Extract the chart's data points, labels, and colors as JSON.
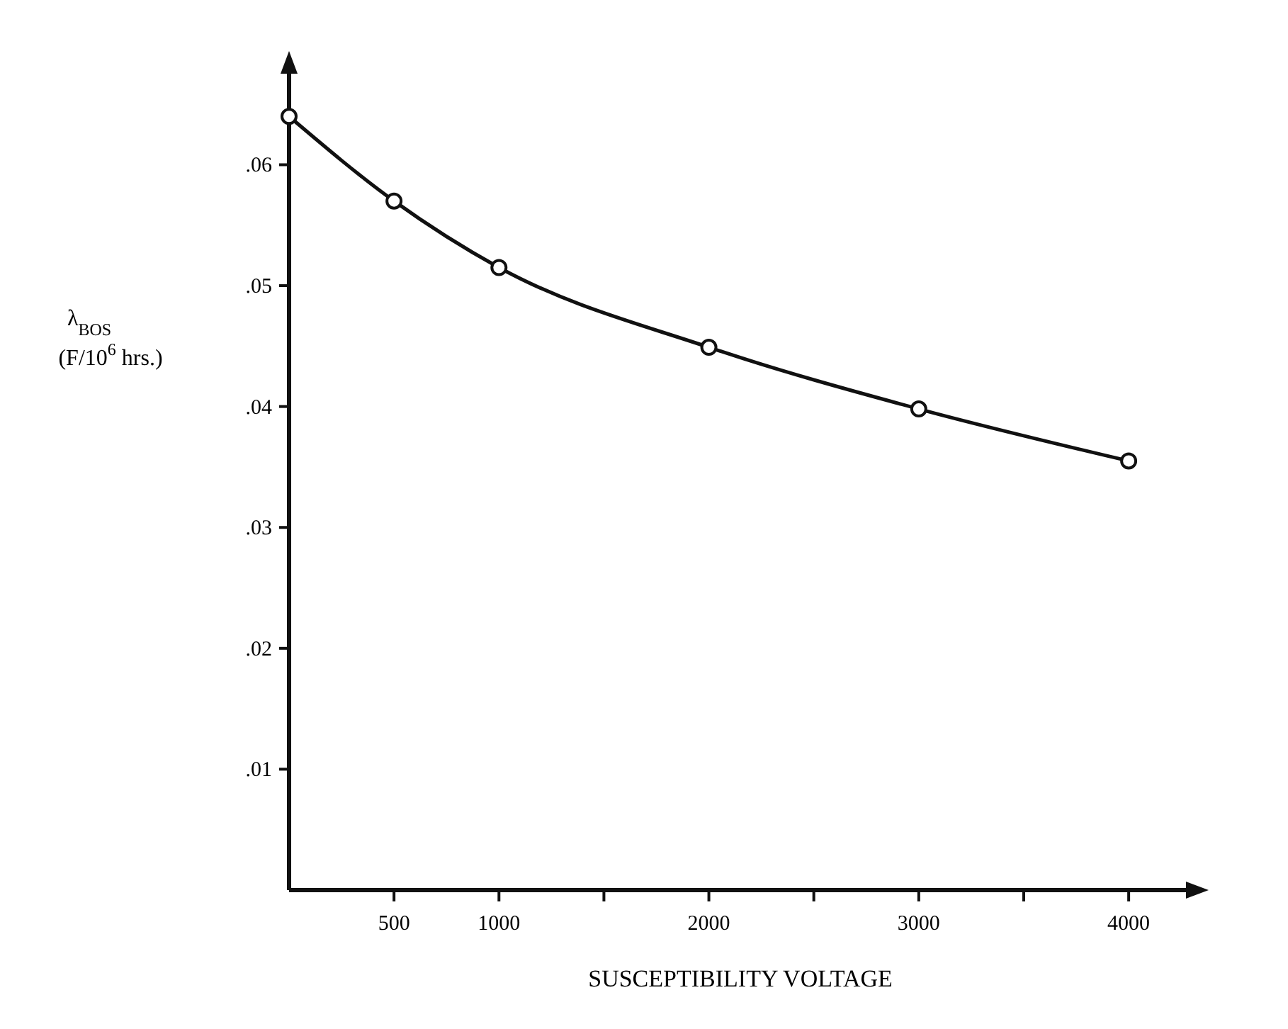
{
  "chart_data": {
    "type": "line",
    "xlabel": "SUSCEPTIBILITY VOLTAGE",
    "ylabel": "λ$_{BOS}$ (F/10$^{6}$ hrs.)",
    "x": [
      0,
      500,
      1000,
      2000,
      3000,
      4000
    ],
    "series": [
      {
        "color": "#111111",
        "values": [
          0.064,
          0.057,
          0.0515,
          0.0449,
          0.0398,
          0.0355
        ]
      }
    ],
    "xlim": [
      0,
      4300
    ],
    "ylim": [
      0,
      0.068
    ],
    "xticks": [
      500,
      1000,
      {
        "value": 1500,
        "label": null
      },
      2000,
      {
        "value": 2500,
        "label": null
      },
      3000,
      {
        "value": 3500,
        "label": null
      },
      4000
    ],
    "yticks": [
      {
        "value": 0.01,
        "label": ".01"
      },
      {
        "value": 0.02,
        "label": ".02"
      },
      {
        "value": 0.03,
        "label": ".03"
      },
      {
        "value": 0.04,
        "label": ".04"
      },
      {
        "value": 0.05,
        "label": ".05"
      },
      {
        "value": 0.06,
        "label": ".06"
      }
    ],
    "marker": "circle",
    "line_style": "solid"
  }
}
